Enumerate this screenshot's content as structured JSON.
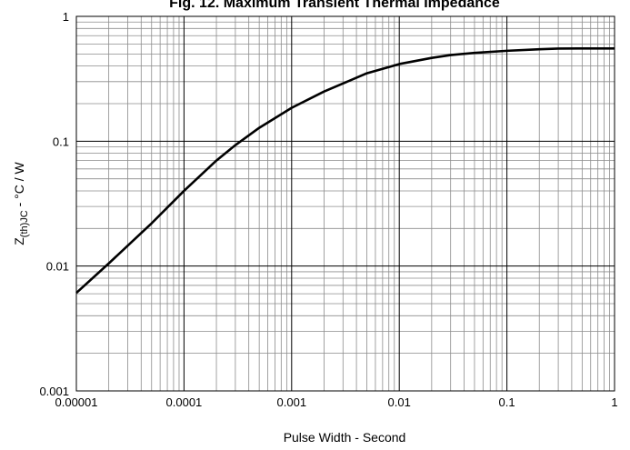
{
  "chart_data": {
    "type": "line",
    "title": "Fig. 12. Maximum Transient Thermal Impedance",
    "xlabel": "Pulse Width - Second",
    "ylabel": "Z(th)JC - °C / W",
    "x_scale": "log",
    "y_scale": "log",
    "xlim": [
      1e-05,
      1
    ],
    "ylim": [
      0.001,
      1
    ],
    "x_ticks": [
      {
        "value": 1e-05,
        "label": "0.00001"
      },
      {
        "value": 0.0001,
        "label": "0.0001"
      },
      {
        "value": 0.001,
        "label": "0.001"
      },
      {
        "value": 0.01,
        "label": "0.01"
      },
      {
        "value": 0.1,
        "label": "0.1"
      },
      {
        "value": 1,
        "label": "1"
      }
    ],
    "y_ticks": [
      {
        "value": 0.001,
        "label": "0.001"
      },
      {
        "value": 0.01,
        "label": "0.01"
      },
      {
        "value": 0.1,
        "label": "0.1"
      },
      {
        "value": 1,
        "label": "1"
      }
    ],
    "grid": true,
    "series": [
      {
        "color": "#000000",
        "x": [
          1e-05,
          2e-05,
          5e-05,
          0.0001,
          0.0002,
          0.0003,
          0.0005,
          0.001,
          0.002,
          0.003,
          0.005,
          0.01,
          0.02,
          0.03,
          0.05,
          0.1,
          0.2,
          0.3,
          0.5,
          1
        ],
        "y": [
          0.0061,
          0.0105,
          0.022,
          0.04,
          0.07,
          0.093,
          0.128,
          0.185,
          0.25,
          0.29,
          0.35,
          0.415,
          0.465,
          0.49,
          0.51,
          0.53,
          0.545,
          0.552,
          0.553,
          0.553
        ]
      }
    ]
  }
}
